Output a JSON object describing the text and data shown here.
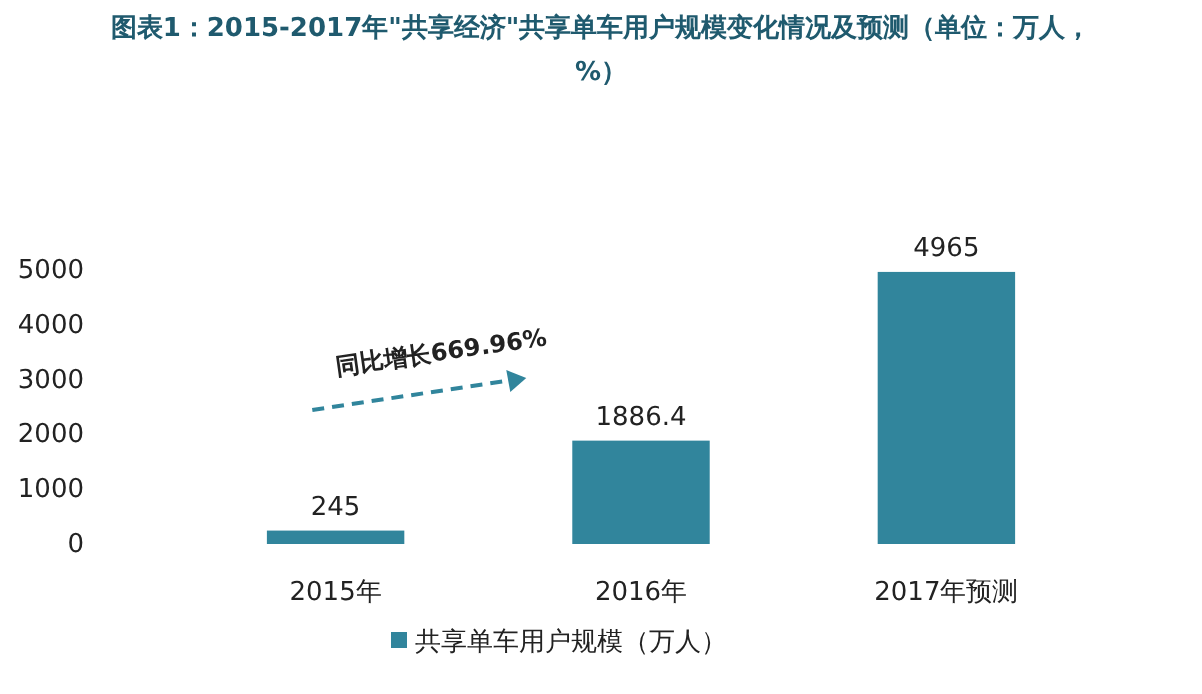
{
  "chart_data": {
    "type": "bar",
    "title": "图表1：2015-2017年\"共享经济\"共享单车用户规模变化情况及预测（单位：万人，%）",
    "categories": [
      "2015年",
      "2016年",
      "2017年预测"
    ],
    "series": [
      {
        "name": "共享单车用户规模（万人）",
        "color": "#31859c",
        "values": [
          245,
          1886.4,
          4965
        ]
      }
    ],
    "ylim": [
      0,
      5000
    ],
    "yticks": [
      0,
      1000,
      2000,
      3000,
      4000,
      5000
    ],
    "grid": false,
    "legend": "bottom",
    "data_labels": true,
    "annotations": [
      "同比增长669.96%"
    ]
  }
}
